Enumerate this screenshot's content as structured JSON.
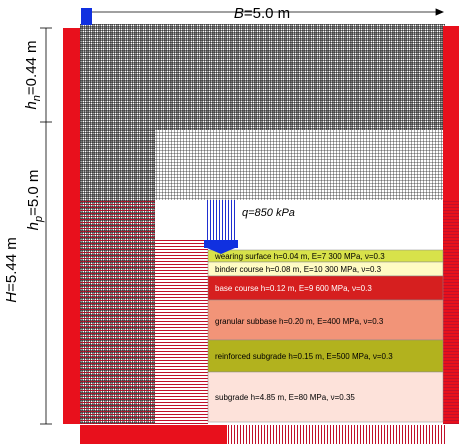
{
  "dimensions": {
    "width": {
      "symbol": "B",
      "value": "=5.0 m"
    },
    "total_height": {
      "symbol": "H",
      "value": "=5.44 m"
    },
    "top_height": {
      "symbol": "h",
      "subscript": "n",
      "value": "=0.44 m"
    },
    "bottom_height": {
      "symbol": "h",
      "subscript": "p",
      "value": "=5.0 m"
    }
  },
  "load": {
    "symbol": "q",
    "value": "=850 kPa"
  },
  "layers": [
    {
      "label": "wearing surface h=0.04 m, E=7 300 MPa, ν=0.3"
    },
    {
      "label": "binder course h=0.08 m, E=10 300 MPa, ν=0.3"
    },
    {
      "label": "base course h=0.12 m, E=9 600 MPa, ν=0.3"
    },
    {
      "label": "granular subbase h=0.20 m, E=400 MPa, ν=0.3"
    },
    {
      "label": "reinforced subgrade h=0.15 m, E=500 MPa, ν=0.3"
    },
    {
      "label": "subgrade h=4.85 m, E=80 MPa, ν=0.35"
    }
  ]
}
